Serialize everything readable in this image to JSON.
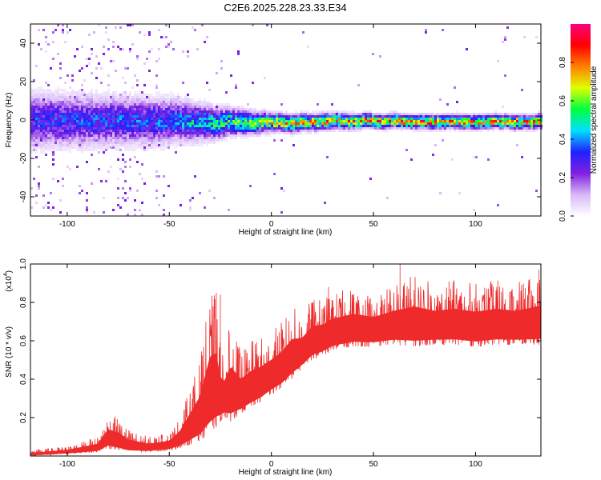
{
  "title": "C2E6.2025.228.23.33.E34",
  "chart_data": [
    {
      "type": "heatmap",
      "xlabel": "Height of straight line (km)",
      "ylabel": "Frequency (Hz)",
      "xlim": [
        -118,
        132
      ],
      "ylim": [
        -50,
        50
      ],
      "xticks": [
        -100,
        -50,
        0,
        50,
        100
      ],
      "yticks": [
        -40,
        -20,
        0,
        20,
        40
      ],
      "colorbar": {
        "label": "Normalized spectral amplitude",
        "range": [
          0,
          1
        ],
        "ticks": [
          0.0,
          0.2,
          0.4,
          0.6,
          0.8
        ],
        "tick_labels": [
          "0.0",
          "0.2",
          "0.4",
          "0.6",
          "0.8"
        ],
        "colormap": [
          "#ffffff",
          "#d8b8f8",
          "#8020e0",
          "#2020ff",
          "#00e0ff",
          "#00ff40",
          "#e0ff00",
          "#ff8000",
          "#ff0000",
          "#ff0080"
        ]
      },
      "ridge": {
        "frequency_hz": 0,
        "description_points": [
          {
            "x": -115,
            "spread_hz": 12,
            "peak_amplitude": 0.35
          },
          {
            "x": -50,
            "spread_hz": 10,
            "peak_amplitude": 0.4
          },
          {
            "x": -20,
            "spread_hz": 6,
            "peak_amplitude": 0.6
          },
          {
            "x": 0,
            "spread_hz": 4,
            "peak_amplitude": 0.75
          },
          {
            "x": 50,
            "spread_hz": 3,
            "peak_amplitude": 0.85
          },
          {
            "x": 132,
            "spread_hz": 3,
            "peak_amplitude": 0.85
          }
        ]
      }
    },
    {
      "type": "line",
      "xlabel": "Height of straight line (km)",
      "ylabel": "SNR (10 * v/v)",
      "y_scale_label": "(x10",
      "y_scale_exponent": "4",
      "y_scale_suffix": ")",
      "xlim": [
        -118,
        132
      ],
      "ylim": [
        0,
        1.0
      ],
      "xticks": [
        -100,
        -50,
        0,
        50,
        100
      ],
      "yticks": [
        0.2,
        0.4,
        0.6,
        0.8,
        1.0
      ],
      "ytick_labels": [
        "0.2",
        "0.4",
        "0.6",
        "0.8",
        "1.0"
      ],
      "color": "#ee2a2a",
      "series": [
        {
          "envelope_x": [
            -118,
            -100,
            -85,
            -80,
            -75,
            -70,
            -60,
            -50,
            -45,
            -40,
            -35,
            -30,
            -27,
            -25,
            -23,
            -20,
            -15,
            -10,
            -5,
            0,
            5,
            10,
            15,
            20,
            25,
            30,
            40,
            50,
            60,
            70,
            80,
            90,
            100,
            110,
            120,
            132
          ],
          "envelope_low": [
            0.0,
            0.01,
            0.02,
            0.04,
            0.03,
            0.02,
            0.02,
            0.03,
            0.04,
            0.06,
            0.08,
            0.12,
            0.15,
            0.18,
            0.2,
            0.18,
            0.22,
            0.25,
            0.28,
            0.32,
            0.35,
            0.4,
            0.45,
            0.5,
            0.52,
            0.55,
            0.57,
            0.57,
            0.58,
            0.57,
            0.58,
            0.58,
            0.57,
            0.58,
            0.58,
            0.58
          ],
          "envelope_high": [
            0.03,
            0.05,
            0.1,
            0.22,
            0.2,
            0.14,
            0.1,
            0.12,
            0.2,
            0.35,
            0.5,
            0.85,
            0.85,
            0.6,
            0.55,
            0.7,
            0.55,
            0.6,
            0.62,
            0.65,
            0.7,
            0.78,
            0.75,
            0.82,
            0.82,
            0.85,
            0.88,
            0.85,
            0.9,
            0.95,
            0.9,
            0.92,
            0.9,
            0.92,
            0.9,
            0.95
          ],
          "spikes": [
            {
              "x": -27,
              "y": 0.85
            },
            {
              "x": -25,
              "y": 0.84
            },
            {
              "x": 28,
              "y": 0.88
            },
            {
              "x": 63,
              "y": 1.0
            },
            {
              "x": 131,
              "y": 0.97
            }
          ]
        }
      ]
    }
  ]
}
